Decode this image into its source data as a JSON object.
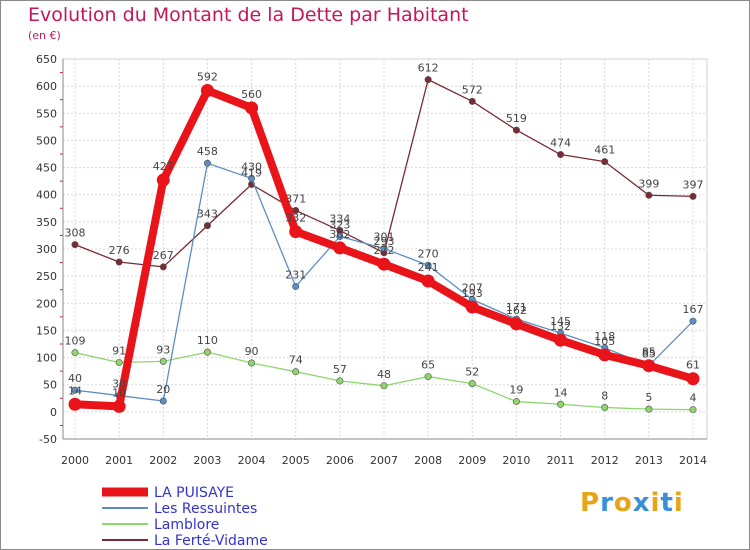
{
  "title": "Evolution du Montant de la Dette par Habitant",
  "subtitle": "(en €)",
  "logo": "Proxiti",
  "chart_data": {
    "type": "line",
    "x": [
      "2000",
      "2001",
      "2002",
      "2003",
      "2004",
      "2005",
      "2006",
      "2007",
      "2008",
      "2009",
      "2010",
      "2011",
      "2012",
      "2013",
      "2014"
    ],
    "ylim": [
      -50,
      650
    ],
    "yticks": [
      -50,
      0,
      50,
      100,
      150,
      200,
      250,
      300,
      350,
      400,
      450,
      500,
      550,
      600,
      650
    ],
    "grid": true,
    "legend_position": "bottom-left",
    "series": [
      {
        "name": "LA PUISAYE",
        "color": "#e8141a",
        "values": [
          14,
          10,
          427,
          592,
          560,
          332,
          302,
          272,
          241,
          193,
          162,
          132,
          105,
          85,
          61
        ]
      },
      {
        "name": "Les Ressuintes",
        "color": "#5b8fc4",
        "values": [
          40,
          30,
          20,
          458,
          430,
          231,
          323,
          301,
          270,
          207,
          171,
          145,
          118,
          85,
          167
        ]
      },
      {
        "name": "Lamblore",
        "color": "#8ed66b",
        "values": [
          109,
          91,
          93,
          110,
          90,
          74,
          57,
          48,
          65,
          52,
          19,
          14,
          8,
          5,
          4
        ]
      },
      {
        "name": "La Ferté-Vidame",
        "color": "#7a2a33",
        "values": [
          308,
          276,
          267,
          343,
          419,
          371,
          334,
          293,
          612,
          572,
          519,
          474,
          461,
          399,
          397
        ]
      }
    ]
  }
}
